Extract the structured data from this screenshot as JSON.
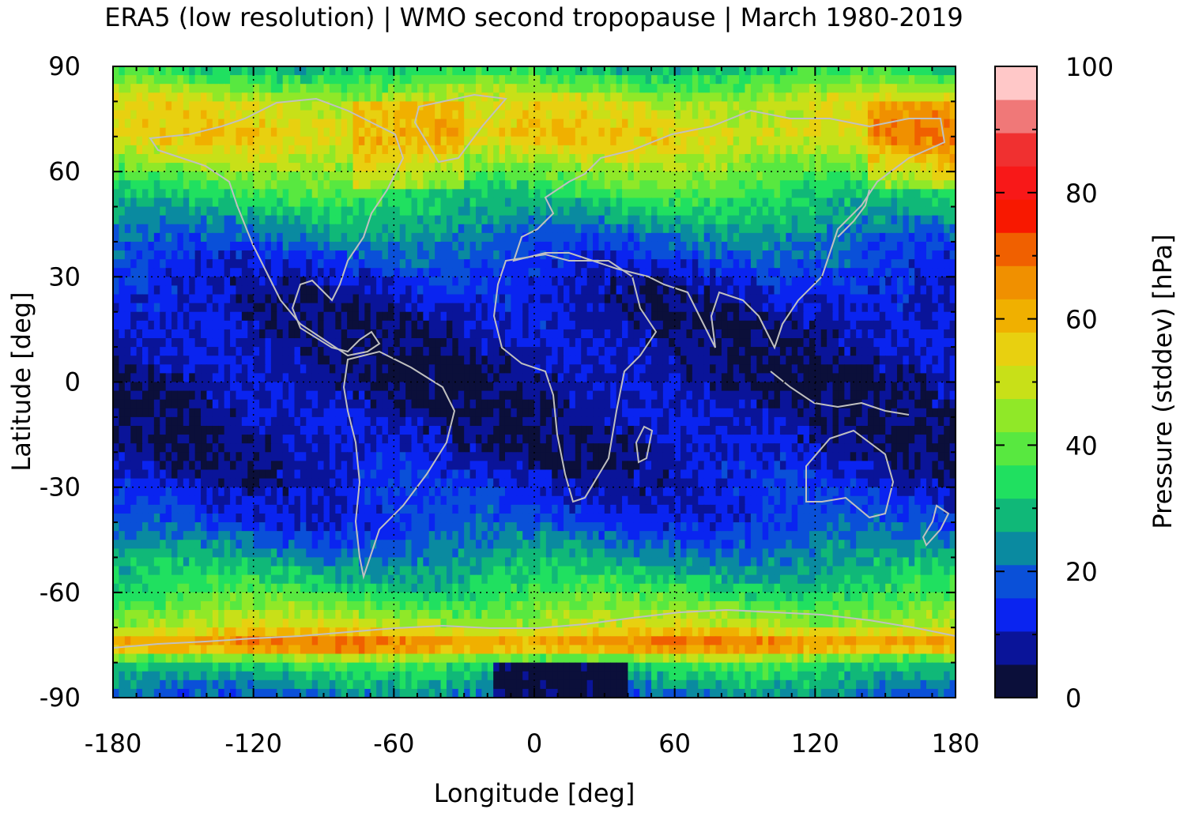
{
  "title": "ERA5 (low resolution) | WMO second tropopause | March 1980-2019",
  "chart_data": {
    "type": "heatmap",
    "title": "ERA5 (low resolution) | WMO second tropopause | March 1980-2019",
    "xlabel": "Longitude [deg]",
    "ylabel": "Latitude [deg]",
    "xlim": [
      -180,
      180
    ],
    "ylim": [
      -90,
      90
    ],
    "xticks": [
      "-180",
      "-120",
      "-60",
      "0",
      "60",
      "120",
      "180"
    ],
    "yticks": [
      "90",
      "60",
      "30",
      "0",
      "-30",
      "-60",
      "-90"
    ],
    "grid": true,
    "colorbar": {
      "label": "Pressure (stddev) [hPa]",
      "range": [
        0,
        100
      ],
      "ticks": [
        "100",
        "80",
        "60",
        "40",
        "20",
        "0"
      ],
      "colors": [
        "#0b0f3a",
        "#0a1499",
        "#0a24f0",
        "#0a50d8",
        "#0a8aa0",
        "#10b878",
        "#20e060",
        "#58e840",
        "#90e828",
        "#c8e018",
        "#e8d010",
        "#f0b000",
        "#f09000",
        "#f06000",
        "#f81800",
        "#f81818",
        "#f03030",
        "#f07878",
        "#ffc8c8"
      ]
    },
    "zonal_pattern": {
      "latitudes": [
        90,
        80,
        70,
        60,
        50,
        40,
        30,
        20,
        10,
        0,
        -10,
        -20,
        -30,
        -40,
        -50,
        -60,
        -70,
        -75,
        -80,
        -90
      ],
      "values": [
        30,
        50,
        55,
        42,
        30,
        20,
        12,
        8,
        8,
        6,
        8,
        8,
        12,
        15,
        25,
        35,
        50,
        70,
        35,
        20
      ]
    },
    "coastline_color": "#c0c0c0"
  }
}
